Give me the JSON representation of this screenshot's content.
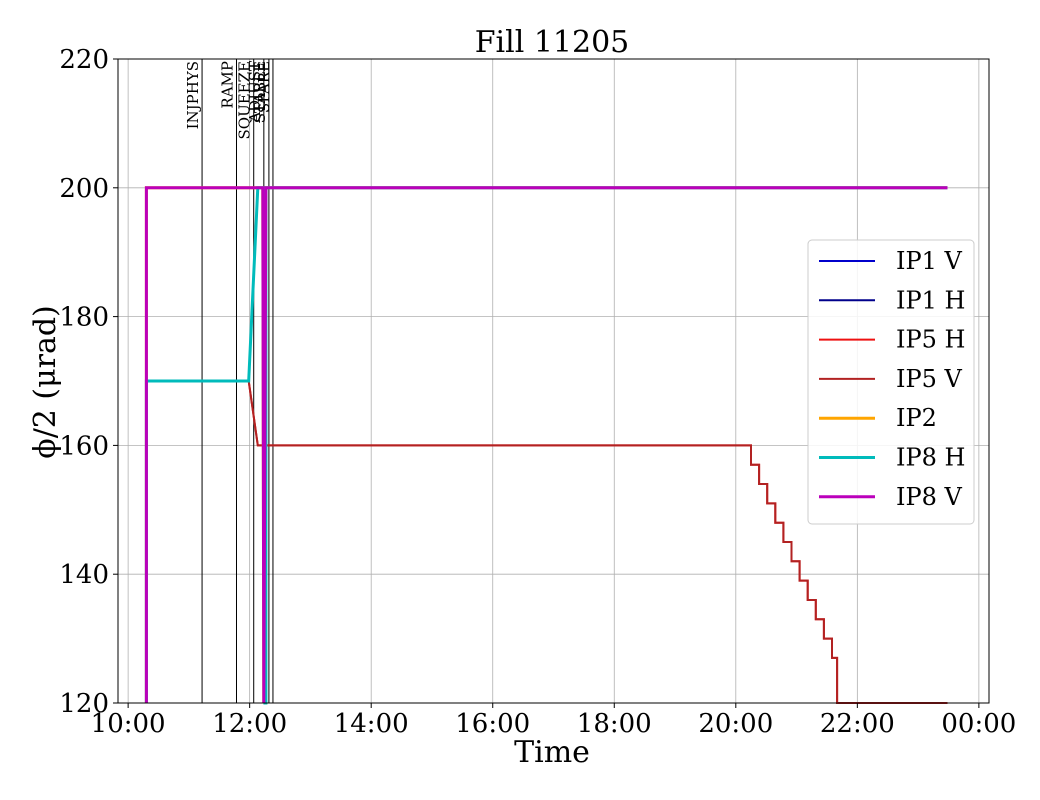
{
  "chart_data": {
    "type": "line",
    "title": "Fill 11205",
    "xlabel": "Time",
    "ylabel": "ϕ/2 (μrad)",
    "xlim": [
      "09:50",
      "00:10"
    ],
    "ylim": [
      120,
      220
    ],
    "x_ticks": [
      "10:00",
      "12:00",
      "14:00",
      "16:00",
      "18:00",
      "20:00",
      "22:00",
      "00:00"
    ],
    "y_ticks": [
      120,
      140,
      160,
      180,
      200,
      220
    ],
    "grid": true,
    "legend_position": "center-right",
    "phases": [
      {
        "label": "INJPHYS",
        "time": "11:13"
      },
      {
        "label": "RAMP",
        "time": "11:47"
      },
      {
        "label": "SQUEEZE",
        "time": "12:04"
      },
      {
        "label": "ADJUST",
        "time": "12:14"
      },
      {
        "label": "STABLE",
        "time": "12:19"
      },
      {
        "label": "SPARE",
        "time": "12:23"
      }
    ],
    "series": [
      {
        "name": "IP1 V",
        "color": "#0000cc",
        "linewidth": 2,
        "x": [
          "10:18",
          "10:18",
          "11:59",
          "12:08",
          "12:14",
          "23:29"
        ],
        "y": [
          120,
          170,
          170,
          200,
          200,
          200
        ]
      },
      {
        "name": "IP1 H",
        "color": "#00008b",
        "linewidth": 2,
        "x": [
          "10:18",
          "10:18",
          "11:59",
          "12:08",
          "12:14",
          "23:29"
        ],
        "y": [
          120,
          170,
          170,
          200,
          200,
          200
        ]
      },
      {
        "name": "IP5 H",
        "color": "#ee1111",
        "linewidth": 2,
        "x": [
          "10:18",
          "10:18",
          "11:59",
          "12:08",
          "20:15",
          "20:15",
          "20:23",
          "20:23",
          "20:31",
          "20:31",
          "20:39",
          "20:39",
          "20:47",
          "20:47",
          "20:55",
          "20:55",
          "21:03",
          "21:03",
          "21:11",
          "21:11",
          "21:19",
          "21:19",
          "21:27",
          "21:27",
          "21:35",
          "21:35",
          "21:40",
          "21:40",
          "23:29"
        ],
        "y": [
          120,
          170,
          170,
          160,
          160,
          157,
          157,
          154,
          154,
          151,
          151,
          148,
          148,
          145,
          145,
          142,
          142,
          139,
          139,
          136,
          136,
          133,
          133,
          130,
          130,
          127,
          127,
          120,
          120
        ]
      },
      {
        "name": "IP5 V",
        "color": "#b22222",
        "linewidth": 2,
        "x": [
          "10:18",
          "10:18",
          "11:59",
          "12:08",
          "20:15",
          "20:15",
          "20:23",
          "20:23",
          "20:31",
          "20:31",
          "20:39",
          "20:39",
          "20:47",
          "20:47",
          "20:55",
          "20:55",
          "21:03",
          "21:03",
          "21:11",
          "21:11",
          "21:19",
          "21:19",
          "21:27",
          "21:27",
          "21:35",
          "21:35",
          "21:40",
          "21:40",
          "23:29"
        ],
        "y": [
          120,
          170,
          170,
          160,
          160,
          157,
          157,
          154,
          154,
          151,
          151,
          148,
          148,
          145,
          145,
          142,
          142,
          139,
          139,
          136,
          136,
          133,
          133,
          130,
          130,
          127,
          127,
          120,
          120
        ]
      },
      {
        "name": "IP2",
        "color": "#ffa500",
        "linewidth": 3,
        "x": [
          "10:18",
          "10:18",
          "12:13",
          "12:14",
          "12:16",
          "12:16",
          "12:22",
          "23:29"
        ],
        "y": [
          120,
          200,
          200,
          120,
          200,
          200,
          200,
          200
        ]
      },
      {
        "name": "IP8 H",
        "color": "#00bbbb",
        "linewidth": 3,
        "x": [
          "10:18",
          "10:18",
          "11:59",
          "12:08",
          "12:14",
          "12:15",
          "12:16",
          "12:16",
          "23:29"
        ],
        "y": [
          120,
          170,
          170,
          200,
          200,
          120,
          120,
          200,
          200
        ]
      },
      {
        "name": "IP8 V",
        "color": "#bb00bb",
        "linewidth": 3,
        "x": [
          "10:18",
          "10:18",
          "10:18",
          "10:18",
          "12:13",
          "12:14",
          "12:16",
          "12:16",
          "23:29"
        ],
        "y": [
          120,
          200,
          200,
          200,
          200,
          120,
          200,
          200,
          200
        ]
      }
    ]
  }
}
